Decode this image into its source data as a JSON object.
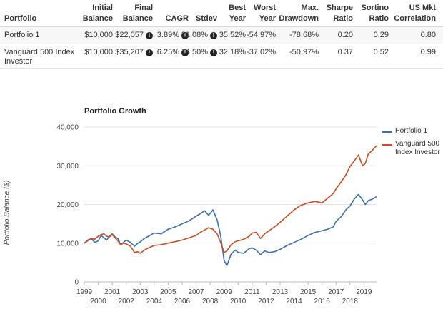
{
  "table": {
    "headers": [
      {
        "key": "portfolio",
        "lines": [
          "Portfolio"
        ]
      },
      {
        "key": "initial",
        "lines": [
          "Initial",
          "Balance"
        ]
      },
      {
        "key": "final",
        "lines": [
          "Final",
          "Balance"
        ]
      },
      {
        "key": "cagr",
        "lines": [
          "CAGR"
        ]
      },
      {
        "key": "stdev",
        "lines": [
          "Stdev"
        ]
      },
      {
        "key": "best",
        "lines": [
          "Best",
          "Year"
        ]
      },
      {
        "key": "worst",
        "lines": [
          "Worst",
          "Year"
        ]
      },
      {
        "key": "maxdd",
        "lines": [
          "Max.",
          "Drawdown"
        ]
      },
      {
        "key": "sharpe",
        "lines": [
          "Sharpe",
          "Ratio"
        ]
      },
      {
        "key": "sortino",
        "lines": [
          "Sortino",
          "Ratio"
        ]
      },
      {
        "key": "usmkt",
        "lines": [
          "US Mkt",
          "Correlation"
        ]
      }
    ],
    "rows": [
      {
        "name": [
          "Portfolio 1"
        ],
        "initial": "$10,000",
        "final": "$22,057",
        "cagr": "3.89%",
        "stdev": "21.08%",
        "best": "35.52%",
        "worst": "-54.97%",
        "maxdd": "-78.68%",
        "sharpe": "0.20",
        "sortino": "0.29",
        "usmkt": "0.80"
      },
      {
        "name": [
          "Vanguard 500 Index",
          "Investor"
        ],
        "initial": "$10,000",
        "final": "$35,207",
        "cagr": "6.25%",
        "stdev": "14.50%",
        "best": "32.18%",
        "worst": "-37.02%",
        "maxdd": "-50.97%",
        "sharpe": "0.37",
        "sortino": "0.52",
        "usmkt": "0.99"
      }
    ],
    "info_glyph": "!"
  },
  "chart_data": {
    "type": "line",
    "title": "Portfolio Growth",
    "ylabel": "Portfolio Balance ($)",
    "xlabel": "",
    "ylim": [
      0,
      40000
    ],
    "xlim": [
      1999,
      2019.9
    ],
    "y_ticks": [
      "0",
      "10,000",
      "20,000",
      "30,000",
      "40,000"
    ],
    "y_tick_values": [
      0,
      10000,
      20000,
      30000,
      40000
    ],
    "x_ticks_top": [
      "1999",
      "2001",
      "2003",
      "2005",
      "2007",
      "2009",
      "2011",
      "2013",
      "2015",
      "2017",
      "2019"
    ],
    "x_ticks_bottom": [
      "2000",
      "2002",
      "2004",
      "2006",
      "2008",
      "2010",
      "2012",
      "2014",
      "2016",
      "2018"
    ],
    "grid": "horizontal",
    "legend_position": "right",
    "series": [
      {
        "name": "Portfolio 1",
        "color": "#3a6fb5",
        "x": [
          1999.0,
          1999.25,
          1999.5,
          1999.75,
          2000.0,
          2000.2,
          2000.4,
          2000.6,
          2000.8,
          2001.0,
          2001.2,
          2001.4,
          2001.6,
          2001.8,
          2002.0,
          2002.3,
          2002.6,
          2002.8,
          2003.0,
          2003.3,
          2003.6,
          2004.0,
          2004.5,
          2005.0,
          2005.5,
          2006.0,
          2006.5,
          2007.0,
          2007.3,
          2007.6,
          2007.9,
          2008.2,
          2008.5,
          2008.75,
          2009.0,
          2009.2,
          2009.5,
          2009.8,
          2010.0,
          2010.4,
          2010.8,
          2011.0,
          2011.3,
          2011.6,
          2011.9,
          2012.2,
          2012.6,
          2013.0,
          2013.5,
          2014.0,
          2014.5,
          2015.0,
          2015.5,
          2016.0,
          2016.4,
          2016.8,
          2017.0,
          2017.4,
          2017.7,
          2018.0,
          2018.3,
          2018.6,
          2018.9,
          2019.1,
          2019.3,
          2019.6,
          2019.9
        ],
        "values": [
          10000,
          10800,
          11200,
          10200,
          10600,
          12000,
          11400,
          10800,
          11800,
          12400,
          11600,
          11200,
          9600,
          10200,
          10800,
          10200,
          9200,
          9900,
          10300,
          11200,
          11800,
          12600,
          12400,
          13600,
          14200,
          15000,
          15800,
          17000,
          17600,
          18400,
          17200,
          18600,
          16000,
          12000,
          5500,
          4200,
          7200,
          8200,
          7600,
          7400,
          8600,
          8800,
          8200,
          7000,
          8000,
          7600,
          7800,
          8400,
          9400,
          10200,
          11000,
          12000,
          12800,
          13200,
          13600,
          14200,
          15600,
          17000,
          18600,
          19600,
          21400,
          22600,
          21200,
          20000,
          21000,
          21400,
          22000
        ]
      },
      {
        "name": "Vanguard 500 Index Investor",
        "color": "#cc4b23",
        "x": [
          1999.0,
          1999.25,
          1999.5,
          1999.75,
          2000.0,
          2000.2,
          2000.4,
          2000.6,
          2000.8,
          2001.0,
          2001.2,
          2001.4,
          2001.6,
          2001.8,
          2002.0,
          2002.3,
          2002.6,
          2002.8,
          2003.0,
          2003.3,
          2003.6,
          2004.0,
          2004.5,
          2005.0,
          2005.5,
          2006.0,
          2006.5,
          2007.0,
          2007.3,
          2007.6,
          2007.9,
          2008.2,
          2008.5,
          2008.75,
          2009.0,
          2009.2,
          2009.5,
          2009.8,
          2010.0,
          2010.4,
          2010.8,
          2011.0,
          2011.3,
          2011.6,
          2011.9,
          2012.2,
          2012.6,
          2013.0,
          2013.5,
          2014.0,
          2014.5,
          2015.0,
          2015.5,
          2016.0,
          2016.4,
          2016.8,
          2017.0,
          2017.4,
          2017.7,
          2018.0,
          2018.3,
          2018.6,
          2018.9,
          2019.1,
          2019.3,
          2019.6,
          2019.9
        ],
        "values": [
          10000,
          10600,
          11200,
          11000,
          11800,
          12200,
          12400,
          11800,
          11600,
          12200,
          11400,
          10600,
          9600,
          10000,
          9800,
          9200,
          7600,
          7800,
          7400,
          8200,
          8800,
          9400,
          9600,
          10000,
          10400,
          10800,
          11400,
          12000,
          12800,
          13400,
          14000,
          13600,
          12400,
          10200,
          7600,
          8000,
          9600,
          10400,
          10600,
          11000,
          11800,
          12600,
          12800,
          11200,
          12400,
          13200,
          14200,
          15400,
          17000,
          18600,
          19800,
          20400,
          20800,
          20400,
          21600,
          22800,
          24000,
          26000,
          27600,
          29800,
          31200,
          32800,
          30000,
          30600,
          33000,
          34000,
          35200
        ]
      }
    ]
  }
}
